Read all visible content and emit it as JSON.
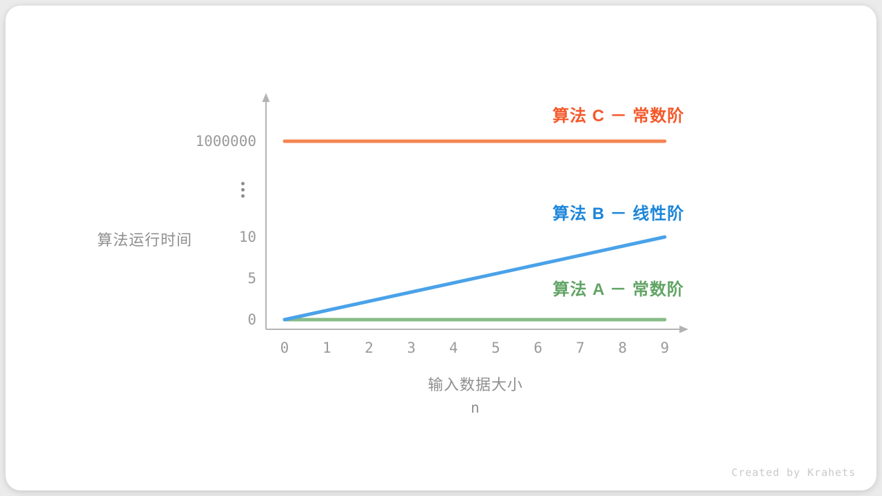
{
  "watermark": "Created by Krahets",
  "chart_data": {
    "type": "line",
    "title": "",
    "ylabel": "算法运行时间",
    "xlabel_line1": "输入数据大小",
    "xlabel_line2": "n",
    "x_ticks": [
      0,
      1,
      2,
      3,
      4,
      5,
      6,
      7,
      8,
      9
    ],
    "y_ticks": [
      {
        "label": "0",
        "value": 0
      },
      {
        "label": "5",
        "value": 5
      },
      {
        "label": "10",
        "value": 10
      },
      {
        "label": "⋮",
        "value": null
      },
      {
        "label": "1000000",
        "value": 1000000
      }
    ],
    "y_axis_break": true,
    "xlim": [
      0,
      9
    ],
    "grid": false,
    "axis_color": "#b3b3b3",
    "tick_text_color": "#9a9a9a",
    "axis_title_color": "#8f8f8f",
    "watermark_color": "#c9c9c9",
    "series": [
      {
        "name": "算法 C － 常数阶",
        "line_color": "#f58453",
        "label_color": "#f4582a",
        "points": [
          [
            0,
            1000000
          ],
          [
            9,
            1000000
          ]
        ]
      },
      {
        "name": "算法 A － 常数阶",
        "line_color": "#86bb85",
        "label_color": "#61a465",
        "points": [
          [
            0,
            0
          ],
          [
            9,
            0
          ]
        ]
      },
      {
        "name": "算法 B － 线性阶",
        "line_color": "#4aa2e9",
        "label_color": "#1c85d9",
        "points": [
          [
            0,
            0
          ],
          [
            9,
            10
          ]
        ]
      }
    ]
  }
}
